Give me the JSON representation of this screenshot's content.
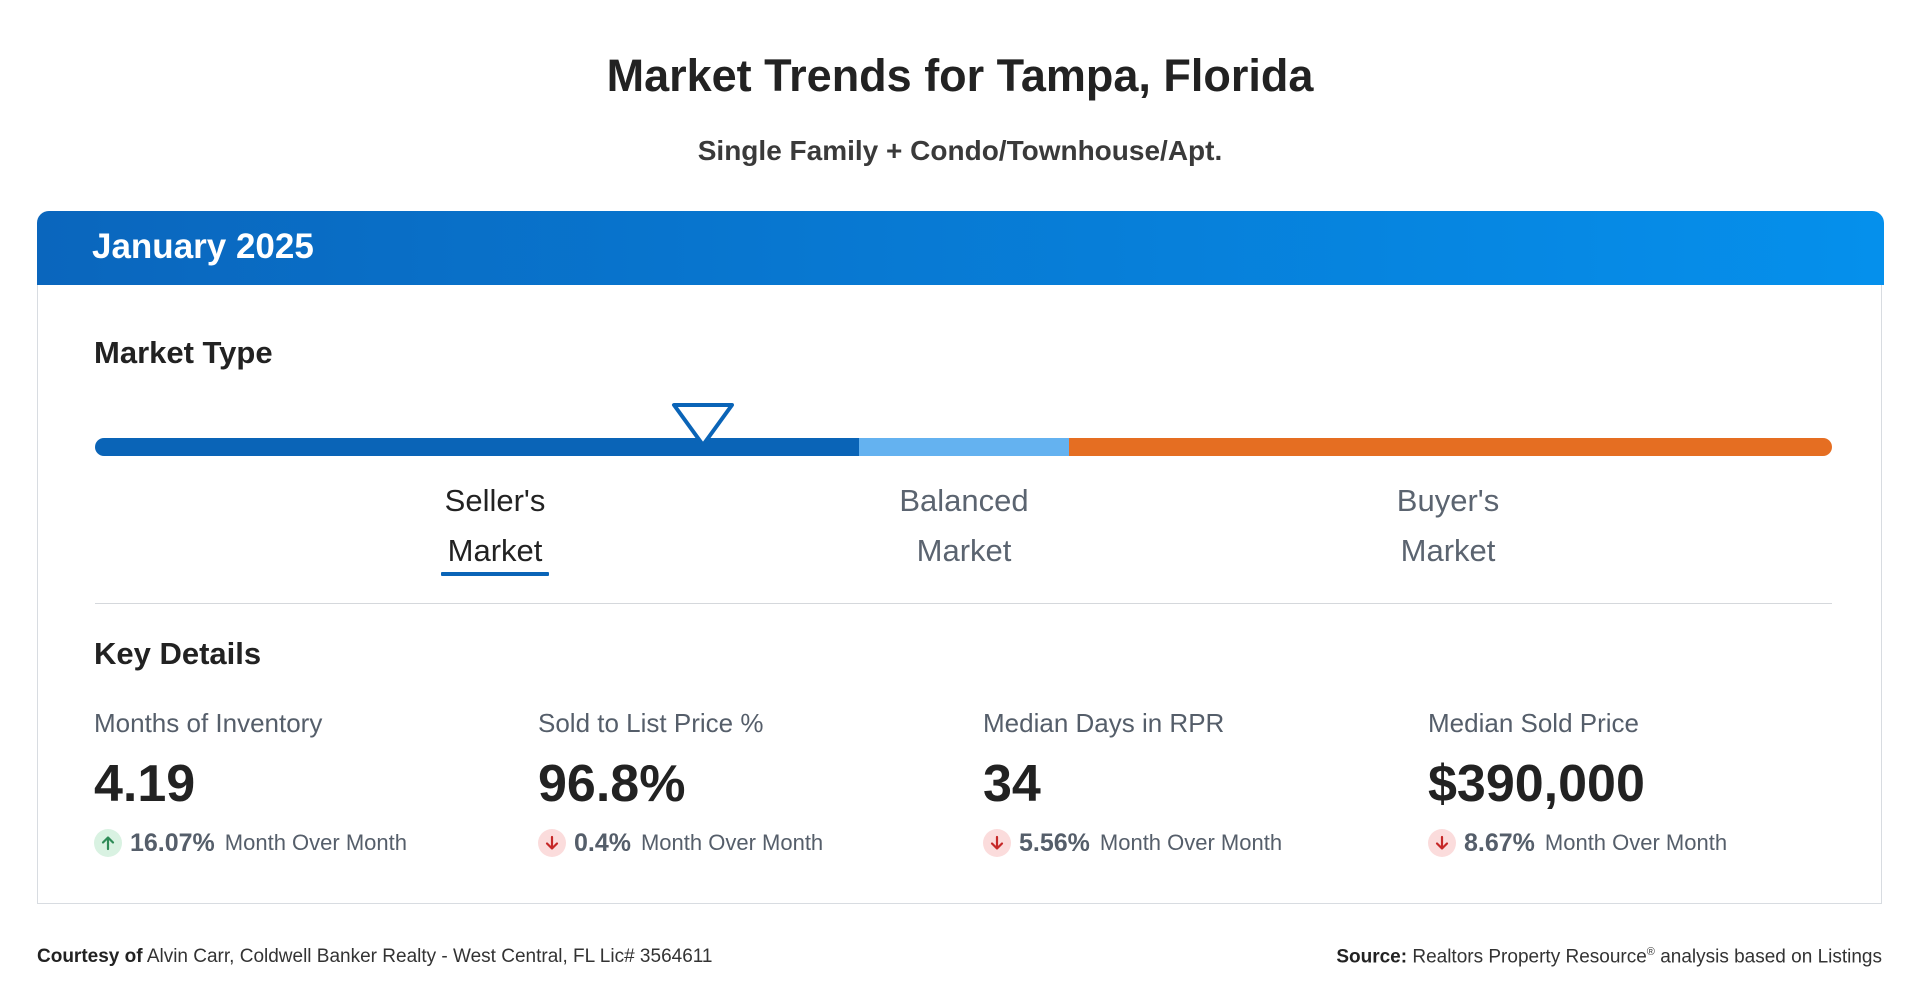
{
  "header": {
    "title": "Market Trends for Tampa, Florida",
    "subtitle": "Single Family + Condo/Townhouse/Apt."
  },
  "card": {
    "period": "January 2025",
    "market_type": {
      "title": "Market Type",
      "indicator_position": 0.35,
      "segment_colors": {
        "seller": "#0a64b7",
        "balanced": "#64b2f0",
        "buyer": "#e56e22"
      },
      "labels": [
        {
          "line1": "Seller's",
          "line2": "Market",
          "selected": true
        },
        {
          "line1": "Balanced",
          "line2": "Market",
          "selected": false
        },
        {
          "line1": "Buyer's",
          "line2": "Market",
          "selected": false
        }
      ]
    },
    "key_details": {
      "title": "Key Details",
      "metrics": [
        {
          "label": "Months of Inventory",
          "value": "4.19",
          "direction": "up",
          "change": "16.07%",
          "period": "Month Over Month"
        },
        {
          "label": "Sold to List Price %",
          "value": "96.8%",
          "direction": "down",
          "change": "0.4%",
          "period": "Month Over Month"
        },
        {
          "label": "Median Days in RPR",
          "value": "34",
          "direction": "down",
          "change": "5.56%",
          "period": "Month Over Month"
        },
        {
          "label": "Median Sold Price",
          "value": "$390,000",
          "direction": "down",
          "change": "8.67%",
          "period": "Month Over Month"
        }
      ]
    }
  },
  "footer": {
    "courtesy_label": "Courtesy of",
    "courtesy_text": "Alvin Carr, Coldwell Banker Realty - West Central, FL Lic# 3564611",
    "source_label": "Source:",
    "source_name": "Realtors Property Resource",
    "source_mark": "®",
    "source_text": "analysis based on Listings"
  },
  "icons": {
    "indicator": "triangle-down-icon",
    "up": "arrow-up-icon",
    "down": "arrow-down-icon"
  }
}
